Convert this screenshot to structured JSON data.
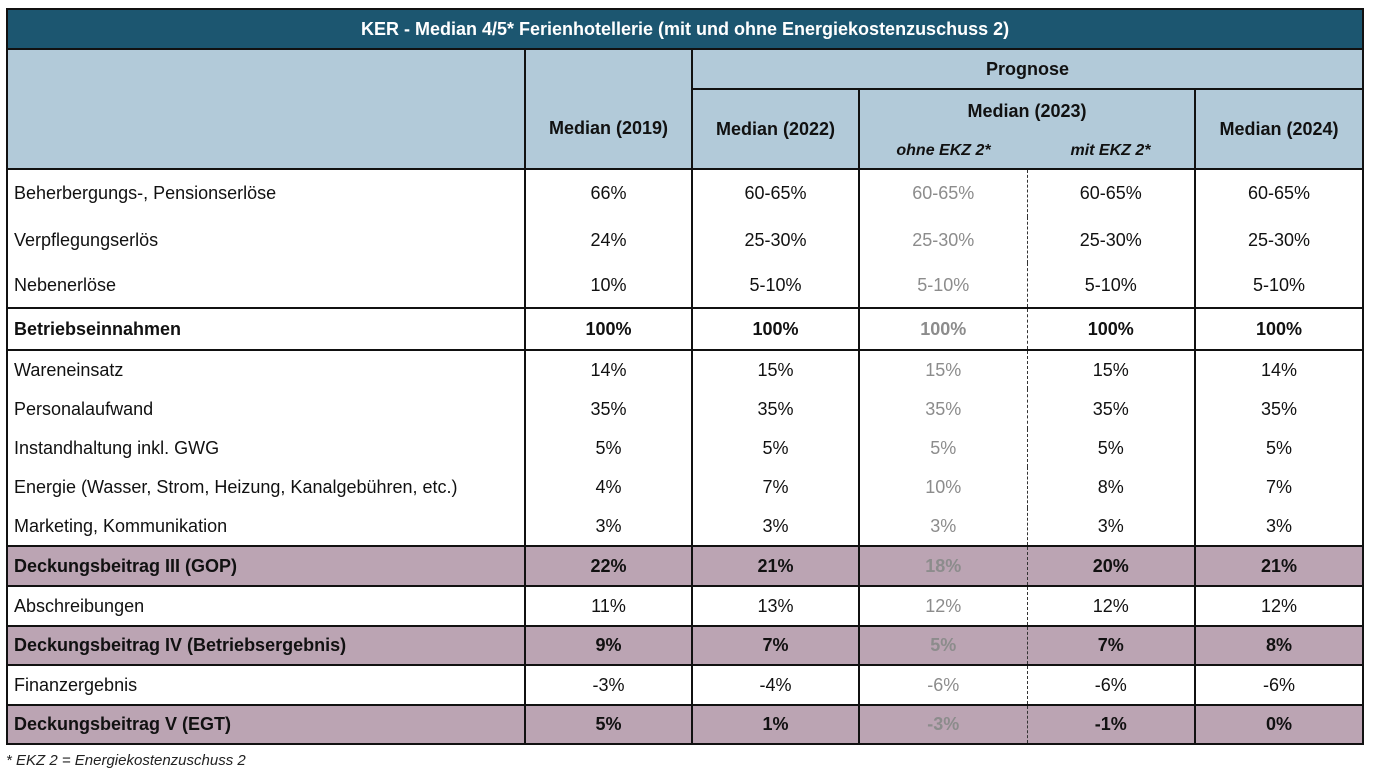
{
  "title": "KER - Median 4/5* Ferienhotellerie (mit und ohne Energiekostenzuschuss 2)",
  "header": {
    "prognose": "Prognose",
    "col_2019": "Median (2019)",
    "col_2022": "Median (2022)",
    "col_2023": "Median (2023)",
    "col_2024": "Median (2024)",
    "sub_ohne": "ohne EKZ 2*",
    "sub_mit": "mit EKZ 2*"
  },
  "rows": [
    {
      "label": "Beherbergungs-, Pensionserlöse",
      "v2019": "66%",
      "v2022": "60-65%",
      "v2023o": "60-65%",
      "v2023m": "60-65%",
      "v2024": "60-65%"
    },
    {
      "label": "Verpflegungserlös",
      "v2019": "24%",
      "v2022": "25-30%",
      "v2023o": "25-30%",
      "v2023m": "25-30%",
      "v2024": "25-30%"
    },
    {
      "label": "Nebenerlöse",
      "v2019": "10%",
      "v2022": "5-10%",
      "v2023o": "5-10%",
      "v2023m": "5-10%",
      "v2024": "5-10%"
    },
    {
      "label": "Betriebseinnahmen",
      "v2019": "100%",
      "v2022": "100%",
      "v2023o": "100%",
      "v2023m": "100%",
      "v2024": "100%"
    },
    {
      "label": "Wareneinsatz",
      "v2019": "14%",
      "v2022": "15%",
      "v2023o": "15%",
      "v2023m": "15%",
      "v2024": "14%"
    },
    {
      "label": "Personalaufwand",
      "v2019": "35%",
      "v2022": "35%",
      "v2023o": "35%",
      "v2023m": "35%",
      "v2024": "35%"
    },
    {
      "label": "Instandhaltung inkl. GWG",
      "v2019": "5%",
      "v2022": "5%",
      "v2023o": "5%",
      "v2023m": "5%",
      "v2024": "5%"
    },
    {
      "label": "Energie (Wasser, Strom, Heizung, Kanalgebühren, etc.)",
      "v2019": "4%",
      "v2022": "7%",
      "v2023o": "10%",
      "v2023m": "8%",
      "v2024": "7%"
    },
    {
      "label": "Marketing, Kommunikation",
      "v2019": "3%",
      "v2022": "3%",
      "v2023o": "3%",
      "v2023m": "3%",
      "v2024": "3%"
    },
    {
      "label": "Deckungsbeitrag III (GOP)",
      "v2019": "22%",
      "v2022": "21%",
      "v2023o": "18%",
      "v2023m": "20%",
      "v2024": "21%"
    },
    {
      "label": "Abschreibungen",
      "v2019": "11%",
      "v2022": "13%",
      "v2023o": "12%",
      "v2023m": "12%",
      "v2024": "12%"
    },
    {
      "label": "Deckungsbeitrag IV (Betriebsergebnis)",
      "v2019": "9%",
      "v2022": "7%",
      "v2023o": "5%",
      "v2023m": "7%",
      "v2024": "8%"
    },
    {
      "label": "Finanzergebnis",
      "v2019": "-3%",
      "v2022": "-4%",
      "v2023o": "-6%",
      "v2023m": "-6%",
      "v2024": "-6%"
    },
    {
      "label": "Deckungsbeitrag V (EGT)",
      "v2019": "5%",
      "v2022": "1%",
      "v2023o": "-3%",
      "v2023m": "-1%",
      "v2024": "0%"
    }
  ],
  "footnote": "* EKZ 2 = Energiekostenzuschuss 2",
  "colors": {
    "title_bg": "#1c5670",
    "header_bg": "#b2cad9",
    "highlight_bg": "#bba4b3",
    "muted_text": "#8c8c8c"
  }
}
